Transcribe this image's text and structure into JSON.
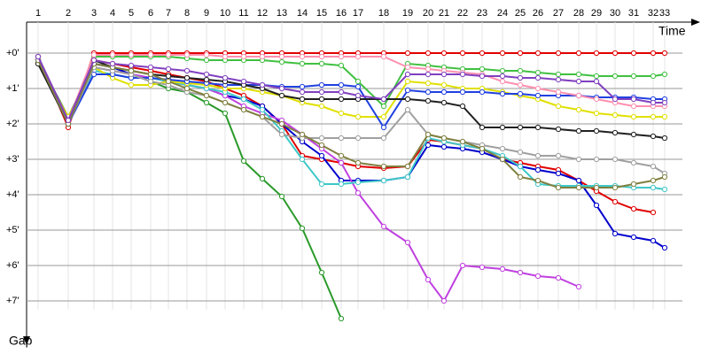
{
  "chart_data": {
    "type": "line",
    "x_label": "Time",
    "y_label": "Gap",
    "x": [
      13,
      47,
      76,
      97,
      118,
      140,
      160,
      181,
      203,
      224,
      245,
      266,
      288,
      311,
      333,
      355,
      374,
      403,
      430,
      453,
      471,
      492,
      514,
      537,
      557,
      577,
      600,
      623,
      643,
      664,
      685,
      707,
      720
    ],
    "xlim": [
      0,
      760
    ],
    "xticks": [
      {
        "value": 13,
        "label": "1"
      },
      {
        "value": 47,
        "label": "2"
      },
      {
        "value": 76,
        "label": "3"
      },
      {
        "value": 97,
        "label": "4"
      },
      {
        "value": 118,
        "label": "5"
      },
      {
        "value": 140,
        "label": "6"
      },
      {
        "value": 160,
        "label": "7"
      },
      {
        "value": 181,
        "label": "8"
      },
      {
        "value": 203,
        "label": "9"
      },
      {
        "value": 224,
        "label": "10"
      },
      {
        "value": 245,
        "label": "11"
      },
      {
        "value": 266,
        "label": "12"
      },
      {
        "value": 288,
        "label": "13"
      },
      {
        "value": 311,
        "label": "14"
      },
      {
        "value": 333,
        "label": "15"
      },
      {
        "value": 355,
        "label": "16"
      },
      {
        "value": 374,
        "label": "17"
      },
      {
        "value": 403,
        "label": "18"
      },
      {
        "value": 430,
        "label": "19"
      },
      {
        "value": 453,
        "label": "20"
      },
      {
        "value": 471,
        "label": "21"
      },
      {
        "value": 492,
        "label": "22"
      },
      {
        "value": 514,
        "label": "23"
      },
      {
        "value": 537,
        "label": "24"
      },
      {
        "value": 557,
        "label": "25"
      },
      {
        "value": 577,
        "label": "26"
      },
      {
        "value": 600,
        "label": "27"
      },
      {
        "value": 623,
        "label": "28"
      },
      {
        "value": 643,
        "label": "29"
      },
      {
        "value": 664,
        "label": "30"
      },
      {
        "value": 685,
        "label": "31"
      },
      {
        "value": 707,
        "label": "32"
      },
      {
        "value": 720,
        "label": "33"
      }
    ],
    "ylim": [
      -0.875,
      8
    ],
    "yticks": [
      {
        "value": 0,
        "label": "+0'"
      },
      {
        "value": 1,
        "label": "+1'"
      },
      {
        "value": 2,
        "label": "+2'"
      },
      {
        "value": 3,
        "label": "+3'"
      },
      {
        "value": 4,
        "label": "+4'"
      },
      {
        "value": 5,
        "label": "+5'"
      },
      {
        "value": 6,
        "label": "+6'"
      },
      {
        "value": 7,
        "label": "+7'"
      }
    ],
    "y_inverted": true,
    "grid": true,
    "series": [
      {
        "color": "#e00000",
        "values": [
          0.1,
          2.1,
          0,
          0,
          0,
          0,
          0,
          0,
          0,
          0,
          0,
          0,
          0,
          0,
          0,
          0,
          0,
          0,
          0,
          0,
          0,
          0,
          0,
          0,
          0,
          0,
          0,
          0,
          0,
          0,
          0,
          0,
          0
        ]
      },
      {
        "color": "#e00000",
        "values": [
          0.2,
          2.0,
          0.2,
          0.3,
          0.4,
          0.5,
          0.6,
          0.7,
          0.8,
          1.0,
          1.2,
          1.5,
          2.0,
          2.9,
          3.0,
          3.1,
          3.2,
          3.25,
          3.2,
          2.45,
          2.5,
          2.6,
          2.7,
          3.0,
          3.1,
          3.2,
          3.3,
          3.6,
          3.9,
          4.2,
          4.4,
          4.5,
          null
        ]
      },
      {
        "color": "#2a9a2a",
        "values": [
          0.2,
          1.8,
          0.3,
          0.4,
          0.6,
          0.8,
          1.0,
          1.1,
          1.4,
          1.7,
          3.05,
          3.55,
          4.05,
          4.95,
          6.2,
          7.5,
          null,
          null,
          null,
          null,
          null,
          null,
          null,
          null,
          null,
          null,
          null,
          null,
          null,
          null,
          null,
          null,
          null
        ]
      },
      {
        "color": "#40c040",
        "values": [
          0.1,
          1.9,
          0.1,
          0.1,
          0.1,
          0.1,
          0.1,
          0.15,
          0.2,
          0.2,
          0.2,
          0.2,
          0.25,
          0.3,
          0.3,
          0.35,
          0.8,
          1.5,
          0.3,
          0.35,
          0.4,
          0.45,
          0.45,
          0.5,
          0.5,
          0.55,
          0.6,
          0.6,
          0.65,
          0.65,
          0.65,
          0.65,
          0.6
        ]
      },
      {
        "color": "#0000cc",
        "values": [
          0.2,
          2.0,
          0.3,
          0.4,
          0.6,
          0.7,
          0.8,
          0.9,
          1.0,
          1.2,
          1.3,
          1.5,
          2.0,
          2.5,
          2.9,
          3.6,
          3.6,
          3.6,
          3.5,
          2.6,
          2.65,
          2.7,
          2.8,
          3.0,
          3.2,
          3.3,
          3.4,
          3.6,
          4.3,
          5.1,
          5.2,
          5.3,
          5.5
        ]
      },
      {
        "color": "#c040e0",
        "values": [
          0.1,
          1.9,
          0.4,
          0.5,
          0.6,
          0.7,
          0.8,
          0.9,
          1.0,
          1.2,
          1.5,
          1.7,
          1.9,
          2.3,
          2.7,
          3.1,
          3.95,
          4.9,
          5.35,
          6.4,
          7.0,
          6.0,
          6.05,
          6.1,
          6.2,
          6.3,
          6.35,
          6.6,
          null,
          null,
          null,
          null,
          null
        ]
      },
      {
        "color": "#40c8c8",
        "values": [
          0.2,
          1.9,
          0.5,
          0.6,
          0.7,
          0.7,
          0.8,
          0.9,
          1.0,
          1.1,
          1.3,
          1.6,
          2.2,
          3.0,
          3.7,
          3.7,
          3.65,
          3.6,
          3.5,
          2.4,
          2.5,
          2.6,
          2.7,
          2.9,
          3.2,
          3.7,
          3.75,
          3.75,
          3.75,
          3.75,
          3.8,
          3.8,
          3.85
        ]
      },
      {
        "color": "#e0e000",
        "values": [
          0.3,
          1.8,
          0.4,
          0.7,
          0.9,
          0.9,
          0.8,
          0.85,
          0.9,
          1.0,
          1.0,
          1.1,
          1.2,
          1.4,
          1.5,
          1.7,
          1.8,
          1.8,
          0.8,
          0.85,
          0.9,
          1.0,
          1.0,
          1.1,
          1.2,
          1.3,
          1.5,
          1.6,
          1.7,
          1.75,
          1.8,
          1.8,
          1.8
        ]
      },
      {
        "color": "#2040e0",
        "values": [
          0.2,
          2.0,
          0.6,
          0.6,
          0.7,
          0.7,
          0.75,
          0.8,
          0.85,
          0.9,
          0.9,
          0.9,
          0.95,
          0.95,
          0.9,
          0.9,
          0.95,
          2.1,
          1.05,
          1.1,
          1.1,
          1.1,
          1.1,
          1.15,
          1.15,
          1.2,
          1.2,
          1.2,
          1.25,
          1.25,
          1.25,
          1.3,
          1.3
        ]
      },
      {
        "color": "#a0a0a0",
        "values": [
          0.3,
          2.0,
          0.4,
          0.5,
          0.6,
          0.8,
          0.9,
          1.1,
          1.2,
          1.4,
          1.6,
          1.8,
          2.3,
          2.4,
          2.4,
          2.4,
          2.4,
          2.4,
          1.6,
          2.3,
          2.4,
          2.5,
          2.6,
          2.7,
          2.8,
          2.9,
          2.9,
          3.0,
          3.0,
          3.0,
          3.1,
          3.2,
          3.4
        ]
      },
      {
        "color": "#202020",
        "values": [
          0.3,
          2.0,
          0.2,
          0.4,
          0.5,
          0.6,
          0.65,
          0.7,
          0.75,
          0.8,
          0.9,
          1.0,
          1.2,
          1.3,
          1.3,
          1.3,
          1.3,
          1.3,
          1.3,
          1.35,
          1.4,
          1.5,
          2.1,
          2.1,
          2.1,
          2.1,
          2.15,
          2.2,
          2.2,
          2.25,
          2.3,
          2.35,
          2.4
        ]
      },
      {
        "color": "#ff90b0",
        "values": [
          0.1,
          1.9,
          0.05,
          0.05,
          0.05,
          0.05,
          0.05,
          0.05,
          0.05,
          0.1,
          0.1,
          0.1,
          0.1,
          0.1,
          0.1,
          0.1,
          0.1,
          0.1,
          0.4,
          0.45,
          0.5,
          0.55,
          0.6,
          0.8,
          0.9,
          1.0,
          1.1,
          1.2,
          1.3,
          1.4,
          1.5,
          1.5,
          1.5
        ]
      },
      {
        "color": "#808040",
        "values": [
          0.2,
          2.0,
          0.3,
          0.4,
          0.5,
          0.6,
          0.8,
          1.0,
          1.2,
          1.4,
          1.6,
          1.8,
          2.0,
          2.3,
          2.6,
          2.9,
          3.1,
          3.2,
          3.2,
          2.3,
          2.4,
          2.5,
          2.7,
          3.0,
          3.5,
          3.6,
          3.8,
          3.8,
          3.8,
          3.8,
          3.7,
          3.6,
          3.5
        ]
      },
      {
        "color": "#8040c0",
        "values": [
          0.1,
          1.9,
          0.2,
          0.3,
          0.35,
          0.4,
          0.45,
          0.5,
          0.6,
          0.7,
          0.8,
          0.9,
          1.0,
          1.1,
          1.1,
          1.1,
          1.2,
          1.3,
          0.6,
          0.6,
          0.6,
          0.6,
          0.65,
          0.65,
          0.7,
          0.7,
          0.75,
          0.8,
          0.8,
          1.3,
          1.3,
          1.4,
          1.4
        ]
      }
    ]
  }
}
